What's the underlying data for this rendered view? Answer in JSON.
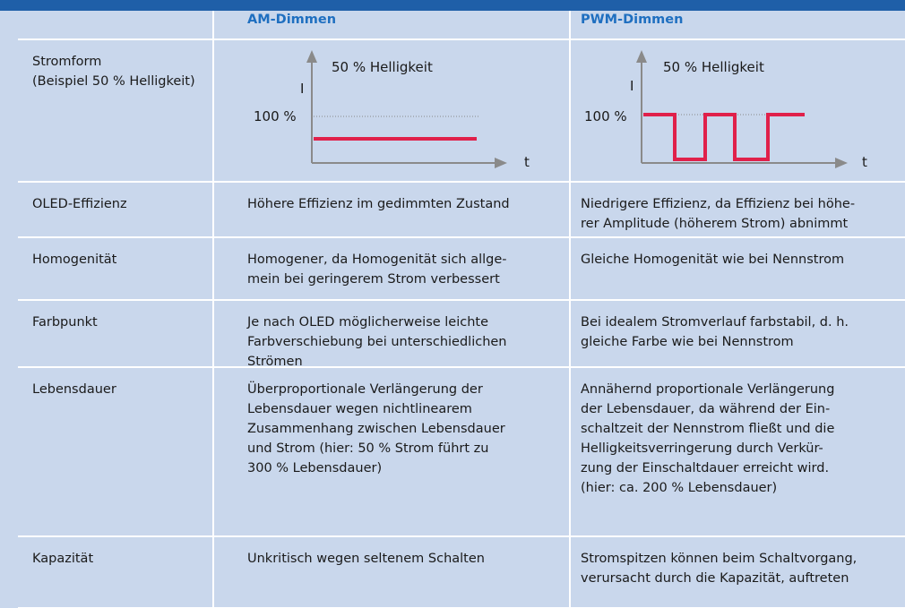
{
  "header": {
    "am": "AM-Dimmen",
    "pwm": "PWM-Dimmen"
  },
  "charts": {
    "am": {
      "title": "50 % Helligkeit",
      "y_label": "I",
      "x_label": "t",
      "level": "100 %"
    },
    "pwm": {
      "title": "50 % Helligkeit",
      "y_label": "I",
      "x_label": "t",
      "level": "100 %"
    }
  },
  "rows": [
    {
      "label": [
        "Stromform",
        "(Beispiel 50 % Helligkeit)"
      ]
    },
    {
      "label": [
        "OLED-Effizienz"
      ],
      "am": [
        "Höhere Effizienz im gedimmten Zustand"
      ],
      "pwm": [
        "Niedrigere Effizienz, da Effizienz bei höhe-",
        "rer Amplitude (höherem Strom) abnimmt"
      ]
    },
    {
      "label": [
        "Homogenität"
      ],
      "am": [
        "Homogener, da Homogenität sich allge-",
        "mein bei geringerem Strom verbessert"
      ],
      "pwm": [
        "Gleiche Homogenität wie bei Nennstrom"
      ]
    },
    {
      "label": [
        "Farbpunkt"
      ],
      "am": [
        "Je nach OLED möglicherweise leichte",
        "Farbverschiebung bei unterschiedlichen",
        "Strömen"
      ],
      "pwm": [
        "Bei idealem Stromverlauf farbstabil, d. h.",
        "gleiche Farbe wie bei Nennstrom"
      ]
    },
    {
      "label": [
        "Lebensdauer"
      ],
      "am": [
        "Überproportionale Verlängerung der",
        "Lebensdauer wegen nichtlinearem",
        "Zusammenhang zwischen Lebensdauer",
        "und Strom (hier: 50 % Strom führt zu",
        "300 % Lebensdauer)"
      ],
      "pwm": [
        "Annähernd proportionale Verlängerung",
        "der Lebensdauer, da während der Ein-",
        "schaltzeit der Nennstrom fließt und die",
        "Helligkeitsverringerung durch Verkür-",
        "zung der Einschaltdauer erreicht wird.",
        "(hier: ca. 200 % Lebensdauer)"
      ]
    },
    {
      "label": [
        "Kapazität"
      ],
      "am": [
        "Unkritisch wegen seltenem Schalten"
      ],
      "pwm": [
        "Stromspitzen können beim Schaltvorgang,",
        "verursacht durch die Kapazität, auftreten"
      ]
    }
  ]
}
